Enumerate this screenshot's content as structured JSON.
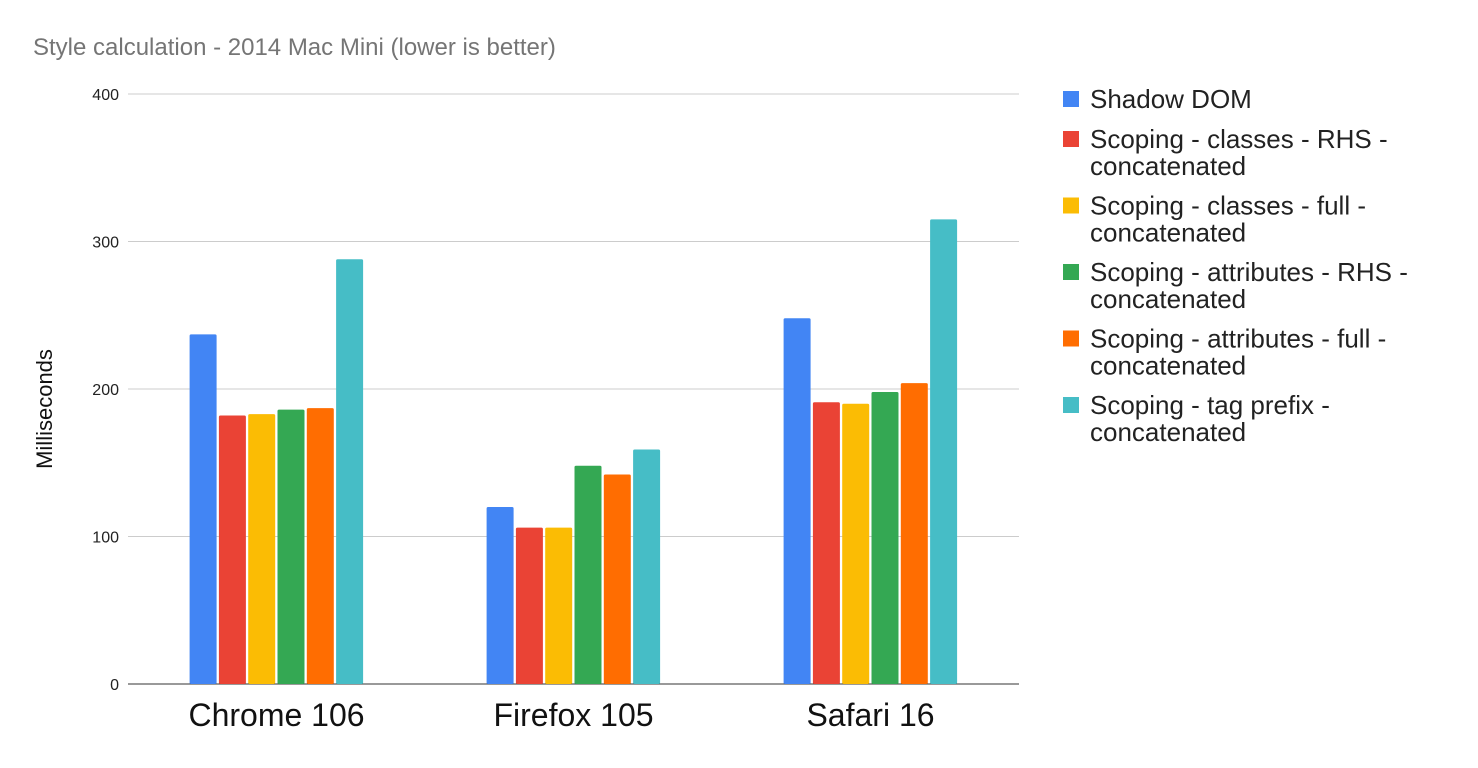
{
  "chart_data": {
    "type": "bar",
    "title": "Style calculation - 2014 Mac Mini (lower is better)",
    "xlabel": "",
    "ylabel": "Milliseconds",
    "ylim": [
      0,
      400
    ],
    "yticks": [
      "0",
      "100",
      "200",
      "300",
      "400"
    ],
    "ytick_values": [
      0,
      100,
      200,
      300,
      400
    ],
    "grid": true,
    "legend_position": "right",
    "categories": [
      "Chrome 106",
      "Firefox 105",
      "Safari 16"
    ],
    "series": [
      {
        "name": "Shadow DOM",
        "legend_lines": [
          "Shadow DOM"
        ],
        "color": "#4285f4",
        "values": [
          237,
          120,
          248
        ]
      },
      {
        "name": "Scoping - classes - RHS - concatenated",
        "legend_lines": [
          "Scoping - classes - RHS -",
          "concatenated"
        ],
        "color": "#ea4335",
        "values": [
          182,
          106,
          191
        ]
      },
      {
        "name": "Scoping - classes - full - concatenated",
        "legend_lines": [
          "Scoping - classes - full -",
          "concatenated"
        ],
        "color": "#fbbc04",
        "values": [
          183,
          106,
          190
        ]
      },
      {
        "name": "Scoping - attributes - RHS - concatenated",
        "legend_lines": [
          "Scoping - attributes - RHS -",
          "concatenated"
        ],
        "color": "#34a853",
        "values": [
          186,
          148,
          198
        ]
      },
      {
        "name": "Scoping - attributes - full - concatenated",
        "legend_lines": [
          "Scoping - attributes - full -",
          "concatenated"
        ],
        "color": "#ff6d01",
        "values": [
          187,
          142,
          204
        ]
      },
      {
        "name": "Scoping - tag prefix - concatenated",
        "legend_lines": [
          "Scoping - tag prefix -",
          "concatenated"
        ],
        "color": "#46bdc6",
        "values": [
          288,
          159,
          315
        ]
      }
    ]
  }
}
